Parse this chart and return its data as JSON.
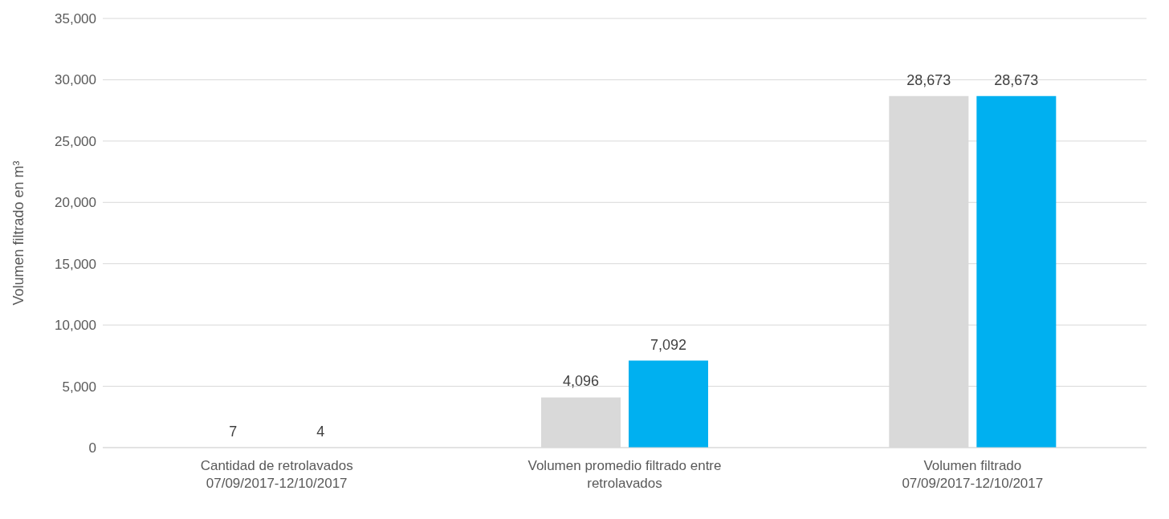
{
  "chart_data": {
    "type": "bar",
    "ylabel": "Volumen filtrado en m³",
    "categories": [
      "Cantidad de retrolavados 07/09/2017-12/10/2017",
      "Volumen promedio filtrado entre retrolavados",
      "Volumen filtrado 07/09/2017-12/10/2017"
    ],
    "series": [
      {
        "color": "#d9d9d9",
        "values": [
          7,
          4096,
          28673
        ],
        "value_labels": [
          "7",
          "4,096",
          "28,673"
        ]
      },
      {
        "color": "#00b0f0",
        "values": [
          4,
          7092,
          28673
        ],
        "value_labels": [
          "4",
          "7,092",
          "28,673"
        ]
      }
    ],
    "ylim": [
      0,
      35000
    ],
    "yticks": [
      {
        "value": 0,
        "label": "0"
      },
      {
        "value": 5000,
        "label": "5,000"
      },
      {
        "value": 10000,
        "label": "10,000"
      },
      {
        "value": 15000,
        "label": "15,000"
      },
      {
        "value": 20000,
        "label": "20,000"
      },
      {
        "value": 25000,
        "label": "25,000"
      },
      {
        "value": 30000,
        "label": "30,000"
      },
      {
        "value": 35000,
        "label": "35,000"
      }
    ],
    "grid": "y",
    "legend": false
  }
}
